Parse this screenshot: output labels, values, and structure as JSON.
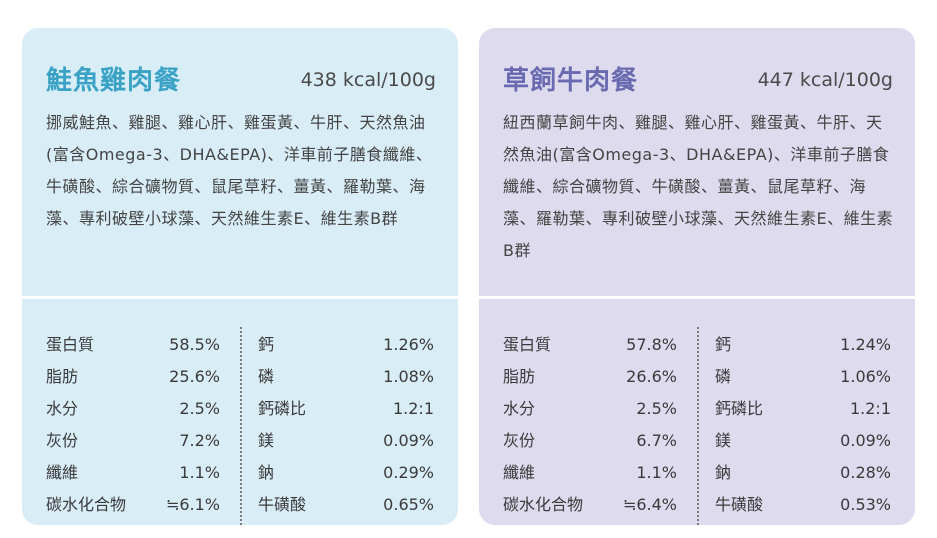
{
  "cards": [
    {
      "name": "鮭魚雞肉餐",
      "calories": "438 kcal/100g",
      "ingredients": "挪威鮭魚、雞腿、雞心肝、雞蛋黃、牛肝、天然魚油(富含Omega-3、DHA&EPA)、洋車前子膳食纖維、牛磺酸、綜合礦物質、鼠尾草籽、薑黃、羅勒葉、海藻、專利破壁小球藻、天然維生素E、維生素B群",
      "nutrients_left": [
        {
          "label": "蛋白質",
          "value": "58.5%"
        },
        {
          "label": "脂肪",
          "value": "25.6%"
        },
        {
          "label": "水分",
          "value": "2.5%"
        },
        {
          "label": "灰份",
          "value": "7.2%"
        },
        {
          "label": "纖維",
          "value": "1.1%"
        },
        {
          "label": "碳水化合物",
          "value": "≒6.1%"
        }
      ],
      "nutrients_right": [
        {
          "label": "鈣",
          "value": "1.26%"
        },
        {
          "label": "磷",
          "value": "1.08%"
        },
        {
          "label": "鈣磷比",
          "value": "1.2:1"
        },
        {
          "label": "鎂",
          "value": "0.09%"
        },
        {
          "label": "鈉",
          "value": "0.29%"
        },
        {
          "label": "牛磺酸",
          "value": "0.65%"
        }
      ]
    },
    {
      "name": "草飼牛肉餐",
      "calories": "447 kcal/100g",
      "ingredients": "紐西蘭草飼牛肉、雞腿、雞心肝、雞蛋黃、牛肝、天然魚油(富含Omega-3、DHA&EPA)、洋車前子膳食纖維、綜合礦物質、牛磺酸、薑黃、鼠尾草籽、海藻、羅勒葉、專利破壁小球藻、天然維生素E、維生素B群",
      "nutrients_left": [
        {
          "label": "蛋白質",
          "value": "57.8%"
        },
        {
          "label": "脂肪",
          "value": "26.6%"
        },
        {
          "label": "水分",
          "value": "2.5%"
        },
        {
          "label": "灰份",
          "value": "6.7%"
        },
        {
          "label": "纖維",
          "value": "1.1%"
        },
        {
          "label": "碳水化合物",
          "value": "≒6.4%"
        }
      ],
      "nutrients_right": [
        {
          "label": "鈣",
          "value": "1.24%"
        },
        {
          "label": "磷",
          "value": "1.06%"
        },
        {
          "label": "鈣磷比",
          "value": "1.2:1"
        },
        {
          "label": "鎂",
          "value": "0.09%"
        },
        {
          "label": "鈉",
          "value": "0.28%"
        },
        {
          "label": "牛磺酸",
          "value": "0.53%"
        }
      ]
    }
  ]
}
